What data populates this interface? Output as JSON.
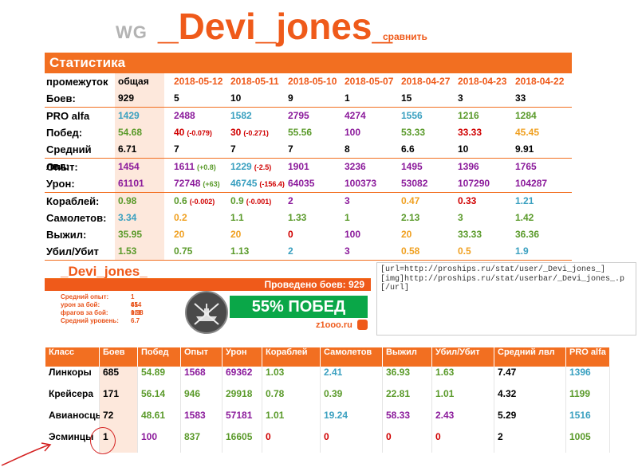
{
  "header": {
    "wg": "WG",
    "nickname": "_Devi_jones_",
    "compare": "сравнить"
  },
  "stats": {
    "title": "Статистика",
    "period_label": "промежуток",
    "columns": [
      "общая",
      "2018-05-12",
      "2018-05-11",
      "2018-05-10",
      "2018-05-07",
      "2018-04-27",
      "2018-04-23",
      "2018-04-22"
    ],
    "groups": [
      [
        {
          "label": "Боев:",
          "cells": [
            {
              "v": "929",
              "c": "#000"
            },
            {
              "v": "5",
              "c": "#000"
            },
            {
              "v": "10",
              "c": "#000"
            },
            {
              "v": "9",
              "c": "#000"
            },
            {
              "v": "1",
              "c": "#000"
            },
            {
              "v": "15",
              "c": "#000"
            },
            {
              "v": "3",
              "c": "#000"
            },
            {
              "v": "33",
              "c": "#000"
            }
          ]
        }
      ],
      [
        {
          "label": "PRO alfa",
          "cells": [
            {
              "v": "1429",
              "c": "#3aa0c0"
            },
            {
              "v": "2488",
              "c": "#8b1a9b"
            },
            {
              "v": "1582",
              "c": "#3aa0c0"
            },
            {
              "v": "2795",
              "c": "#8b1a9b"
            },
            {
              "v": "4274",
              "c": "#8b1a9b"
            },
            {
              "v": "1556",
              "c": "#3aa0c0"
            },
            {
              "v": "1216",
              "c": "#5a9a2a"
            },
            {
              "v": "1284",
              "c": "#5a9a2a"
            }
          ]
        },
        {
          "label": "Побед:",
          "cells": [
            {
              "v": "54.68",
              "c": "#5a9a2a"
            },
            {
              "v": "40",
              "s": "(-0.079)",
              "c": "#d00000"
            },
            {
              "v": "30",
              "s": "(-0.271)",
              "c": "#d00000"
            },
            {
              "v": "55.56",
              "c": "#5a9a2a"
            },
            {
              "v": "100",
              "c": "#8b1a9b"
            },
            {
              "v": "53.33",
              "c": "#5a9a2a"
            },
            {
              "v": "33.33",
              "c": "#d00000"
            },
            {
              "v": "45.45",
              "c": "#f0a020"
            }
          ]
        },
        {
          "label": "Средний лвл:",
          "cells": [
            {
              "v": "6.71",
              "c": "#000"
            },
            {
              "v": "7",
              "c": "#000"
            },
            {
              "v": "7",
              "c": "#000"
            },
            {
              "v": "7",
              "c": "#000"
            },
            {
              "v": "8",
              "c": "#000"
            },
            {
              "v": "6.6",
              "c": "#000"
            },
            {
              "v": "10",
              "c": "#000"
            },
            {
              "v": "9.91",
              "c": "#000"
            }
          ]
        }
      ],
      [
        {
          "label": "Опыт:",
          "cells": [
            {
              "v": "1454",
              "c": "#8b1a9b"
            },
            {
              "v": "1611",
              "s": "(+0.8)",
              "c": "#8b1a9b",
              "sc": "#5a9a2a"
            },
            {
              "v": "1229",
              "s": "(-2.5)",
              "c": "#3aa0c0",
              "sc": "#d00000"
            },
            {
              "v": "1901",
              "c": "#8b1a9b"
            },
            {
              "v": "3236",
              "c": "#8b1a9b"
            },
            {
              "v": "1495",
              "c": "#8b1a9b"
            },
            {
              "v": "1396",
              "c": "#8b1a9b"
            },
            {
              "v": "1765",
              "c": "#8b1a9b"
            }
          ]
        },
        {
          "label": "Урон:",
          "cells": [
            {
              "v": "61101",
              "c": "#8b1a9b"
            },
            {
              "v": "72748",
              "s": "(+63)",
              "c": "#8b1a9b",
              "sc": "#5a9a2a"
            },
            {
              "v": "46745",
              "s": "(-156.4)",
              "c": "#3aa0c0",
              "sc": "#d00000"
            },
            {
              "v": "64035",
              "c": "#8b1a9b"
            },
            {
              "v": "100373",
              "c": "#8b1a9b"
            },
            {
              "v": "53082",
              "c": "#8b1a9b"
            },
            {
              "v": "107290",
              "c": "#8b1a9b"
            },
            {
              "v": "104287",
              "c": "#8b1a9b"
            }
          ]
        }
      ],
      [
        {
          "label": "Кораблей:",
          "cells": [
            {
              "v": "0.98",
              "c": "#5a9a2a"
            },
            {
              "v": "0.6",
              "s": "(-0.002)",
              "c": "#5a9a2a",
              "sc": "#d00000"
            },
            {
              "v": "0.9",
              "s": "(-0.001)",
              "c": "#5a9a2a",
              "sc": "#d00000"
            },
            {
              "v": "2",
              "c": "#8b1a9b"
            },
            {
              "v": "3",
              "c": "#8b1a9b"
            },
            {
              "v": "0.47",
              "c": "#f0a020"
            },
            {
              "v": "0.33",
              "c": "#d00000"
            },
            {
              "v": "1.21",
              "c": "#3aa0c0"
            }
          ]
        },
        {
          "label": "Самолетов:",
          "cells": [
            {
              "v": "3.34",
              "c": "#3aa0c0"
            },
            {
              "v": "0.2",
              "c": "#f0a020"
            },
            {
              "v": "1.1",
              "c": "#5a9a2a"
            },
            {
              "v": "1.33",
              "c": "#5a9a2a"
            },
            {
              "v": "1",
              "c": "#5a9a2a"
            },
            {
              "v": "2.13",
              "c": "#5a9a2a"
            },
            {
              "v": "3",
              "c": "#5a9a2a"
            },
            {
              "v": "1.42",
              "c": "#5a9a2a"
            }
          ]
        },
        {
          "label": "Выжил:",
          "cells": [
            {
              "v": "35.95",
              "c": "#5a9a2a"
            },
            {
              "v": "20",
              "c": "#f0a020"
            },
            {
              "v": "20",
              "c": "#f0a020"
            },
            {
              "v": "0",
              "c": "#d00000"
            },
            {
              "v": "100",
              "c": "#8b1a9b"
            },
            {
              "v": "20",
              "c": "#f0a020"
            },
            {
              "v": "33.33",
              "c": "#5a9a2a"
            },
            {
              "v": "36.36",
              "c": "#5a9a2a"
            }
          ]
        },
        {
          "label": "Убил/Убит",
          "cells": [
            {
              "v": "1.53",
              "c": "#5a9a2a"
            },
            {
              "v": "0.75",
              "c": "#5a9a2a"
            },
            {
              "v": "1.13",
              "c": "#5a9a2a"
            },
            {
              "v": "2",
              "c": "#3aa0c0"
            },
            {
              "v": "3",
              "c": "#8b1a9b"
            },
            {
              "v": "0.58",
              "c": "#f0a020"
            },
            {
              "v": "0.5",
              "c": "#f0a020"
            },
            {
              "v": "1.9",
              "c": "#3aa0c0"
            }
          ]
        }
      ]
    ]
  },
  "banner": {
    "nickname": "_Devi_jones_",
    "battles_text": "Проведено боев: 929",
    "lines": [
      {
        "label": "Средний опыт:",
        "value": "1 454"
      },
      {
        "label": "урон за бой:",
        "value": "61 101"
      },
      {
        "label": "фрагов за бой:",
        "value": "0.98"
      },
      {
        "label": "Средний уровень:",
        "value": "6.7"
      }
    ],
    "winrate": "55% ПОБЕД",
    "site": "z1ooo.ru",
    "emblem": "warships-emblem-icon"
  },
  "code": {
    "lines": [
      "[url=http://proships.ru/stat/user/_Devi_jones_]",
      "[img]http://proships.ru/stat/userbar/_Devi_jones_.p",
      "[/url]"
    ]
  },
  "classes": {
    "headers": [
      "Класс",
      "Боев",
      "Побед",
      "Опыт",
      "Урон",
      "Кораблей",
      "Самолетов",
      "Выжил",
      "Убил/Убит",
      "Средний лвл",
      "PRO alfa"
    ],
    "rows": [
      {
        "cells": [
          {
            "v": "Линкоры",
            "c": "#000"
          },
          {
            "v": "685",
            "c": "#000"
          },
          {
            "v": "54.89",
            "c": "#5a9a2a"
          },
          {
            "v": "1568",
            "c": "#8b1a9b"
          },
          {
            "v": "69362",
            "c": "#8b1a9b"
          },
          {
            "v": "1.03",
            "c": "#5a9a2a"
          },
          {
            "v": "2.41",
            "c": "#3aa0c0"
          },
          {
            "v": "36.93",
            "c": "#5a9a2a"
          },
          {
            "v": "1.63",
            "c": "#5a9a2a"
          },
          {
            "v": "7.47",
            "c": "#000"
          },
          {
            "v": "1396",
            "c": "#3aa0c0"
          }
        ]
      },
      {
        "cells": [
          {
            "v": "Крейсера",
            "c": "#000"
          },
          {
            "v": "171",
            "c": "#000"
          },
          {
            "v": "56.14",
            "c": "#5a9a2a"
          },
          {
            "v": "946",
            "c": "#5a9a2a"
          },
          {
            "v": "29918",
            "c": "#5a9a2a"
          },
          {
            "v": "0.78",
            "c": "#5a9a2a"
          },
          {
            "v": "0.39",
            "c": "#5a9a2a"
          },
          {
            "v": "22.81",
            "c": "#5a9a2a"
          },
          {
            "v": "1.01",
            "c": "#5a9a2a"
          },
          {
            "v": "4.32",
            "c": "#000"
          },
          {
            "v": "1199",
            "c": "#5a9a2a"
          }
        ]
      },
      {
        "cells": [
          {
            "v": "Авианосцы",
            "c": "#000"
          },
          {
            "v": "72",
            "c": "#000"
          },
          {
            "v": "48.61",
            "c": "#5a9a2a"
          },
          {
            "v": "1583",
            "c": "#8b1a9b"
          },
          {
            "v": "57181",
            "c": "#8b1a9b"
          },
          {
            "v": "1.01",
            "c": "#5a9a2a"
          },
          {
            "v": "19.24",
            "c": "#3aa0c0"
          },
          {
            "v": "58.33",
            "c": "#8b1a9b"
          },
          {
            "v": "2.43",
            "c": "#8b1a9b"
          },
          {
            "v": "5.29",
            "c": "#000"
          },
          {
            "v": "1516",
            "c": "#3aa0c0"
          }
        ]
      },
      {
        "cells": [
          {
            "v": "Эсминцы",
            "c": "#000"
          },
          {
            "v": "1",
            "c": "#000"
          },
          {
            "v": "100",
            "c": "#8b1a9b"
          },
          {
            "v": "837",
            "c": "#5a9a2a"
          },
          {
            "v": "16605",
            "c": "#5a9a2a"
          },
          {
            "v": "0",
            "c": "#d00000"
          },
          {
            "v": "0",
            "c": "#d00000"
          },
          {
            "v": "0",
            "c": "#d00000"
          },
          {
            "v": "0",
            "c": "#d00000"
          },
          {
            "v": "2",
            "c": "#000"
          },
          {
            "v": "1005",
            "c": "#5a9a2a"
          }
        ]
      }
    ]
  },
  "colors": {
    "accent": "#f26f21",
    "label_bg": "#fde8dc",
    "win_green": "#0aa748",
    "annotation_red": "#d42020"
  }
}
